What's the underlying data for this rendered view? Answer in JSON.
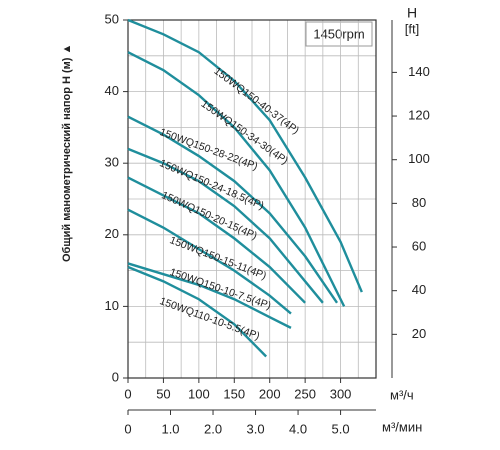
{
  "chart_data": {
    "type": "line",
    "speed_note": "1450rpm",
    "y_label": "Общий манометрический напор H (м) ▲",
    "y2_title": "H",
    "y2_unit": "[ft]",
    "x_unit": "м³/ч",
    "x2_unit": "м³/мин",
    "xlim": [
      0,
      350
    ],
    "xticks": [
      0,
      50,
      100,
      150,
      200,
      250,
      300
    ],
    "x_minor_ticks": [
      25,
      75,
      125,
      175,
      225,
      275,
      325
    ],
    "x2lim": [
      0,
      5.8333
    ],
    "x2ticks": [
      0,
      {
        "value": 1,
        "label": "1.0"
      },
      {
        "value": 2,
        "label": "2.0"
      },
      {
        "value": 3,
        "label": "3.0"
      },
      {
        "value": 4,
        "label": "4.0"
      },
      {
        "value": 5,
        "label": "5.0"
      }
    ],
    "ylim": [
      0,
      50
    ],
    "yticks": [
      0,
      10,
      20,
      30,
      40,
      50
    ],
    "y_minor_ticks": [
      5,
      15,
      25,
      35,
      45
    ],
    "y2lim": [
      0,
      164
    ],
    "y2ticks": [
      20,
      40,
      60,
      80,
      100,
      120,
      140
    ],
    "grid": true,
    "series": [
      {
        "name": "150WQ150-40-37(4P)",
        "color": "#1f8e9c",
        "x": [
          0,
          50,
          100,
          150,
          200,
          250,
          300,
          330
        ],
        "values": [
          50,
          48,
          45.5,
          41.5,
          36,
          28,
          19,
          12
        ]
      },
      {
        "name": "150WQ150-34-30(4P)",
        "color": "#1f8e9c",
        "x": [
          0,
          50,
          100,
          150,
          200,
          250,
          305
        ],
        "values": [
          45.5,
          43,
          39.5,
          35,
          29,
          21,
          10
        ]
      },
      {
        "name": "150WQ150-28-22(4P)",
        "color": "#1f8e9c",
        "x": [
          0,
          50,
          100,
          150,
          200,
          250,
          295
        ],
        "values": [
          36.5,
          34,
          31,
          27.5,
          23,
          17,
          10.5
        ]
      },
      {
        "name": "150WQ150-24-18.5(4P)",
        "color": "#1f8e9c",
        "x": [
          0,
          50,
          100,
          150,
          200,
          275
        ],
        "values": [
          32,
          30,
          27.5,
          24,
          19.5,
          10.5
        ]
      },
      {
        "name": "150WQ150-20-15(4P)",
        "color": "#1f8e9c",
        "x": [
          0,
          50,
          100,
          150,
          200,
          250
        ],
        "values": [
          28,
          25.5,
          23,
          19.5,
          15.5,
          10.5
        ]
      },
      {
        "name": "150WQ150-15-11(4P)",
        "color": "#1f8e9c",
        "x": [
          0,
          50,
          100,
          150,
          200,
          230
        ],
        "values": [
          23.5,
          21,
          18,
          15,
          11.5,
          9
        ]
      },
      {
        "name": "150WQ150-10-7.5(4P)",
        "color": "#1f8e9c",
        "x": [
          0,
          50,
          100,
          150,
          200,
          230
        ],
        "values": [
          16,
          14.5,
          13,
          11,
          8.5,
          7
        ]
      },
      {
        "name": "150WQ110-10-5.5(4P)",
        "color": "#1f8e9c",
        "x": [
          0,
          50,
          100,
          150,
          195
        ],
        "values": [
          15.5,
          13.5,
          11,
          7.5,
          3
        ]
      }
    ]
  }
}
